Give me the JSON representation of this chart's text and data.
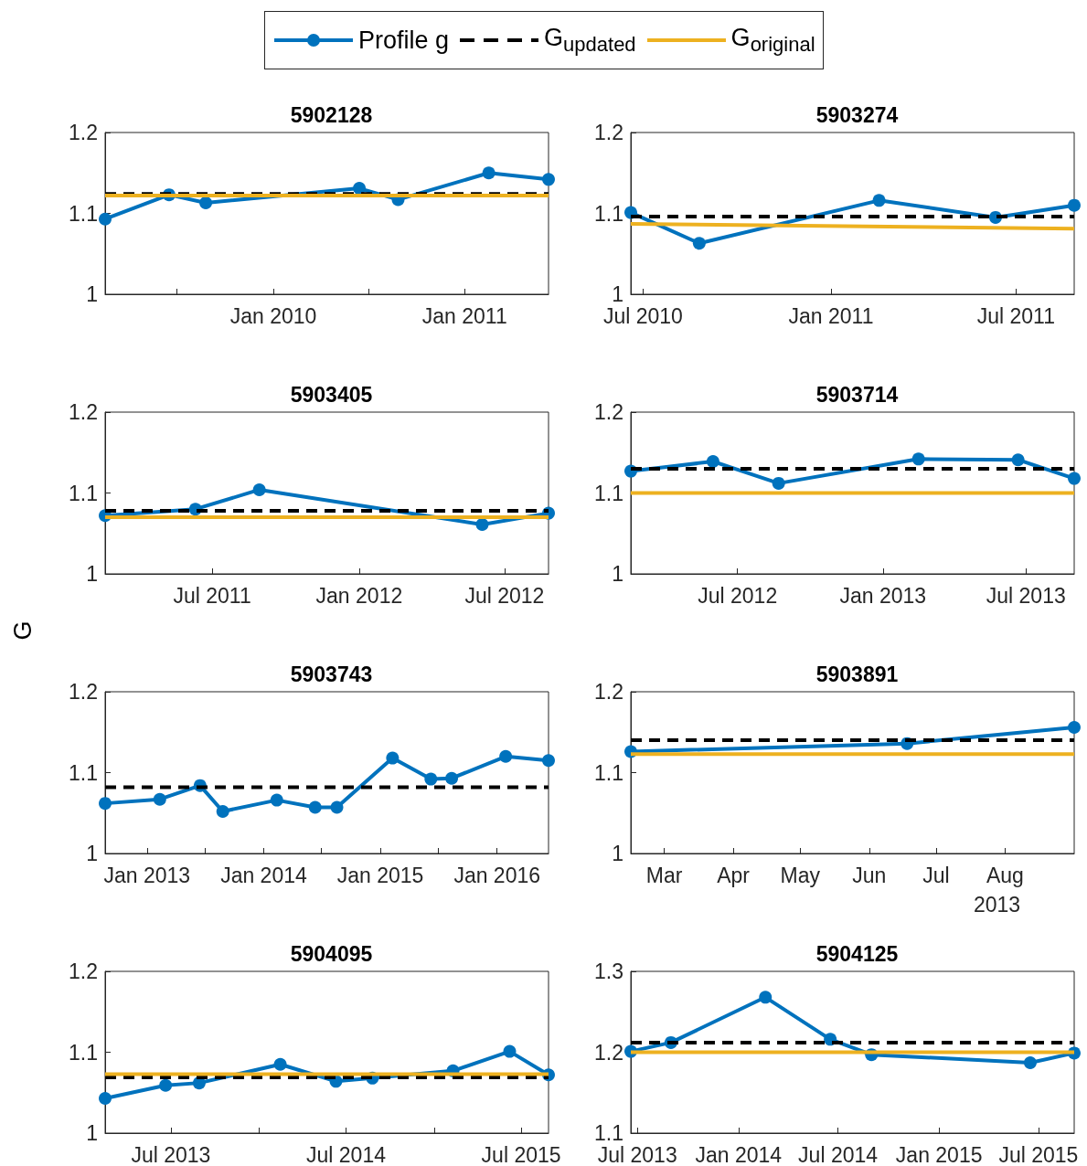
{
  "chart_data": [
    {
      "type": "line",
      "title": "5902128",
      "legend": "top",
      "xlim": [
        "2009-02-14",
        "2011-06-10"
      ],
      "xticks": [
        {
          "value": "2009-07-01",
          "label": null
        },
        {
          "value": "2010-01-01",
          "label": "Jan 2010"
        },
        {
          "value": "2010-07-01",
          "label": null
        },
        {
          "value": "2011-01-01",
          "label": "Jan 2011"
        }
      ],
      "ylim": [
        1,
        1.2
      ],
      "yticks": [
        1,
        1.1,
        1.2
      ],
      "series": [
        {
          "name": "Profile g",
          "color": "#0072bd",
          "marker": "circle",
          "line_style": "solid",
          "x": [
            "2009-02-14",
            "2009-06-16",
            "2009-08-25",
            "2010-06-14",
            "2010-08-27",
            "2011-02-16",
            "2011-06-10"
          ],
          "values": [
            1.093,
            1.123,
            1.113,
            1.131,
            1.117,
            1.15,
            1.142
          ]
        },
        {
          "name": "G$_{updated}$",
          "color": "#000000",
          "marker": "none",
          "line_style": "dashed",
          "x": [
            "2009-02-14",
            "2011-06-10"
          ],
          "values": [
            1.124,
            1.124
          ]
        },
        {
          "name": "G$_{original}$",
          "color": "#edb120",
          "marker": "none",
          "line_style": "solid",
          "x": [
            "2009-02-14",
            "2011-06-10"
          ],
          "values": [
            1.122,
            1.122
          ]
        }
      ]
    },
    {
      "type": "line",
      "title": "5903274",
      "xlim": [
        "2010-06-19",
        "2011-08-27"
      ],
      "xticks": [
        {
          "value": "2010-07-01",
          "label": "Jul 2010"
        },
        {
          "value": "2011-01-01",
          "label": "Jan 2011"
        },
        {
          "value": "2011-07-01",
          "label": "Jul 2011"
        }
      ],
      "ylim": [
        1,
        1.2
      ],
      "yticks": [
        1,
        1.1,
        1.2
      ],
      "series": [
        {
          "color": "#0072bd",
          "marker": "circle",
          "line_style": "solid",
          "x": [
            "2010-06-19",
            "2010-08-25",
            "2011-02-17",
            "2011-06-11",
            "2011-08-27"
          ],
          "values": [
            1.101,
            1.063,
            1.116,
            1.095,
            1.11
          ]
        },
        {
          "color": "#000000",
          "marker": "none",
          "line_style": "dashed",
          "x": [
            "2010-06-19",
            "2011-08-27"
          ],
          "values": [
            1.096,
            1.096
          ]
        },
        {
          "color": "#edb120",
          "marker": "none",
          "line_style": "solid",
          "x": [
            "2010-06-19",
            "2011-08-27"
          ],
          "values": [
            1.087,
            1.081
          ]
        }
      ]
    },
    {
      "type": "line",
      "title": "5903405",
      "ylabel": "G",
      "xlim": [
        "2011-02-17",
        "2012-08-25"
      ],
      "xticks": [
        {
          "value": "2011-07-01",
          "label": "Jul 2011"
        },
        {
          "value": "2012-01-01",
          "label": "Jan 2012"
        },
        {
          "value": "2012-07-01",
          "label": "Jul 2012"
        }
      ],
      "ylim": [
        1,
        1.2
      ],
      "yticks": [
        1,
        1.1,
        1.2
      ],
      "series": [
        {
          "color": "#0072bd",
          "marker": "circle",
          "line_style": "solid",
          "x": [
            "2011-02-17",
            "2011-06-10",
            "2011-08-29",
            "2012-06-03",
            "2012-08-25"
          ],
          "values": [
            1.072,
            1.08,
            1.104,
            1.061,
            1.075
          ]
        },
        {
          "color": "#000000",
          "marker": "none",
          "line_style": "dashed",
          "x": [
            "2011-02-17",
            "2012-08-25"
          ],
          "values": [
            1.078,
            1.078
          ]
        },
        {
          "color": "#edb120",
          "marker": "none",
          "line_style": "solid",
          "x": [
            "2011-02-17",
            "2012-08-25"
          ],
          "values": [
            1.07,
            1.07
          ]
        }
      ]
    },
    {
      "type": "line",
      "title": "5903714",
      "xlim": [
        "2012-02-17",
        "2013-08-31"
      ],
      "xticks": [
        {
          "value": "2012-07-01",
          "label": "Jul 2012"
        },
        {
          "value": "2013-01-01",
          "label": "Jan 2013"
        },
        {
          "value": "2013-07-01",
          "label": "Jul 2013"
        }
      ],
      "ylim": [
        1,
        1.2
      ],
      "yticks": [
        1,
        1.1,
        1.2
      ],
      "series": [
        {
          "color": "#0072bd",
          "marker": "circle",
          "line_style": "solid",
          "x": [
            "2012-02-17",
            "2012-05-31",
            "2012-08-22",
            "2013-02-15",
            "2013-06-21",
            "2013-08-31"
          ],
          "values": [
            1.127,
            1.139,
            1.112,
            1.142,
            1.141,
            1.118
          ]
        },
        {
          "color": "#000000",
          "marker": "none",
          "line_style": "dashed",
          "x": [
            "2012-02-17",
            "2013-08-31"
          ],
          "values": [
            1.13,
            1.13
          ]
        },
        {
          "color": "#edb120",
          "marker": "none",
          "line_style": "solid",
          "x": [
            "2012-02-17",
            "2013-08-31"
          ],
          "values": [
            1.1,
            1.1
          ]
        }
      ]
    },
    {
      "type": "line",
      "title": "5903743",
      "xlim": [
        "2012-08-23",
        "2016-06-10"
      ],
      "xticks": [
        {
          "value": "2013-01-01",
          "label": "Jan 2013"
        },
        {
          "value": "2013-07-01",
          "label": null
        },
        {
          "value": "2014-01-01",
          "label": "Jan 2014"
        },
        {
          "value": "2014-07-01",
          "label": null
        },
        {
          "value": "2015-01-01",
          "label": "Jan 2015"
        },
        {
          "value": "2015-07-01",
          "label": null
        },
        {
          "value": "2016-01-01",
          "label": "Jan 2016"
        }
      ],
      "ylim": [
        1,
        1.2
      ],
      "yticks": [
        1,
        1.1,
        1.2
      ],
      "series": [
        {
          "color": "#0072bd",
          "marker": "circle",
          "line_style": "solid",
          "x": [
            "2012-08-23",
            "2013-02-10",
            "2013-06-16",
            "2013-08-26",
            "2014-02-11",
            "2014-06-11",
            "2014-08-18",
            "2015-02-08",
            "2015-06-08",
            "2015-08-12",
            "2016-01-28",
            "2016-06-10"
          ],
          "values": [
            1.062,
            1.067,
            1.084,
            1.052,
            1.066,
            1.057,
            1.057,
            1.118,
            1.092,
            1.093,
            1.12,
            1.115
          ]
        },
        {
          "color": "#000000",
          "marker": "none",
          "line_style": "dashed",
          "x": [
            "2012-08-23",
            "2016-06-10"
          ],
          "values": [
            1.082,
            1.082
          ]
        }
      ]
    },
    {
      "type": "line",
      "title": "5903891",
      "annotations": [
        "2013"
      ],
      "xlim": [
        "2013-02-14",
        "2013-09-01"
      ],
      "xticks": [
        {
          "value": "2013-03-01",
          "label": "Mar"
        },
        {
          "value": "2013-04-01",
          "label": "Apr"
        },
        {
          "value": "2013-05-01",
          "label": "May"
        },
        {
          "value": "2013-06-01",
          "label": "Jun"
        },
        {
          "value": "2013-07-01",
          "label": "Jul"
        },
        {
          "value": "2013-08-01",
          "label": "Aug"
        }
      ],
      "ylim": [
        1,
        1.2
      ],
      "yticks": [
        1,
        1.1,
        1.2
      ],
      "series": [
        {
          "color": "#0072bd",
          "marker": "circle",
          "line_style": "solid",
          "x": [
            "2013-02-14",
            "2013-06-18",
            "2013-09-01"
          ],
          "values": [
            1.126,
            1.136,
            1.156
          ]
        },
        {
          "color": "#000000",
          "marker": "none",
          "line_style": "dashed",
          "x": [
            "2013-02-14",
            "2013-09-01"
          ],
          "values": [
            1.14,
            1.14
          ]
        },
        {
          "color": "#edb120",
          "marker": "none",
          "line_style": "solid",
          "x": [
            "2013-02-14",
            "2013-09-01"
          ],
          "values": [
            1.123,
            1.123
          ]
        }
      ]
    },
    {
      "type": "line",
      "title": "5904095",
      "xlim": [
        "2013-02-14",
        "2015-08-27"
      ],
      "xticks": [
        {
          "value": "2013-07-01",
          "label": "Jul 2013"
        },
        {
          "value": "2014-01-01",
          "label": null
        },
        {
          "value": "2014-07-01",
          "label": "Jul 2014"
        },
        {
          "value": "2015-01-01",
          "label": null
        },
        {
          "value": "2015-07-01",
          "label": "Jul 2015"
        }
      ],
      "ylim": [
        1,
        1.2
      ],
      "yticks": [
        1,
        1.1,
        1.2
      ],
      "series": [
        {
          "color": "#0072bd",
          "marker": "circle",
          "line_style": "solid",
          "x": [
            "2013-02-14",
            "2013-06-20",
            "2013-08-29",
            "2014-02-14",
            "2014-06-10",
            "2014-08-25",
            "2015-02-09",
            "2015-06-07",
            "2015-08-27"
          ],
          "values": [
            1.043,
            1.059,
            1.062,
            1.085,
            1.064,
            1.068,
            1.077,
            1.101,
            1.072
          ]
        },
        {
          "color": "#000000",
          "marker": "none",
          "line_style": "dashed",
          "x": [
            "2013-02-14",
            "2015-08-27"
          ],
          "values": [
            1.069,
            1.069
          ]
        },
        {
          "color": "#edb120",
          "marker": "none",
          "line_style": "solid",
          "x": [
            "2013-02-14",
            "2015-08-27"
          ],
          "values": [
            1.073,
            1.073
          ]
        }
      ]
    },
    {
      "type": "line",
      "title": "5904125",
      "xlim": [
        "2013-06-19",
        "2015-09-04"
      ],
      "xticks": [
        {
          "value": "2013-07-01",
          "label": "Jul 2013"
        },
        {
          "value": "2014-01-01",
          "label": "Jan 2014"
        },
        {
          "value": "2014-07-01",
          "label": "Jul 2014"
        },
        {
          "value": "2015-01-01",
          "label": "Jan 2015"
        },
        {
          "value": "2015-07-01",
          "label": "Jul 2015"
        }
      ],
      "ylim": [
        1.1,
        1.3
      ],
      "yticks": [
        1.1,
        1.2,
        1.3
      ],
      "series": [
        {
          "color": "#0072bd",
          "marker": "circle",
          "line_style": "solid",
          "x": [
            "2013-06-19",
            "2013-08-31",
            "2014-02-19",
            "2014-06-17",
            "2014-08-31",
            "2015-06-16",
            "2015-09-04"
          ],
          "values": [
            1.201,
            1.212,
            1.268,
            1.216,
            1.197,
            1.187,
            1.199
          ]
        },
        {
          "color": "#000000",
          "marker": "none",
          "line_style": "dashed",
          "x": [
            "2013-06-19",
            "2015-09-04"
          ],
          "values": [
            1.212,
            1.212
          ]
        },
        {
          "color": "#edb120",
          "marker": "none",
          "line_style": "solid",
          "x": [
            "2013-06-19",
            "2015-09-04"
          ],
          "values": [
            1.2,
            1.2
          ]
        }
      ]
    }
  ]
}
